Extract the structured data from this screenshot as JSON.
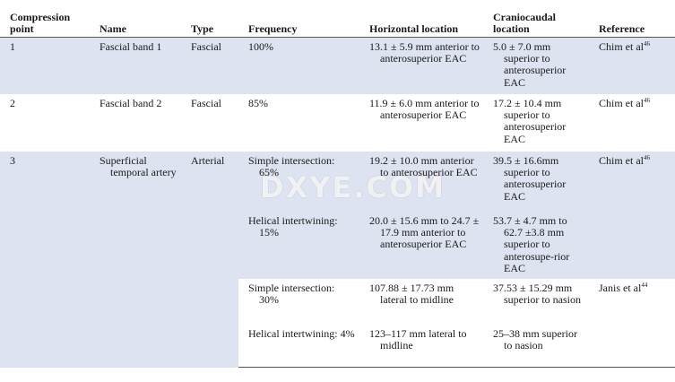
{
  "headers": {
    "point": "Compression point",
    "name": "Name",
    "type": "Type",
    "frequency": "Frequency",
    "horizontal": "Horizontal location",
    "craniocaudal": "Craniocaudal location",
    "reference": "Reference"
  },
  "rows": [
    {
      "point": "1",
      "name": "Fascial band 1",
      "type": "Fascial",
      "frequency": "100%",
      "horizontal": "13.1 ± 5.9 mm anterior to anterosuperior EAC",
      "craniocaudal": "5.0 ± 7.0 mm superior to anterosuperior EAC",
      "ref_author": "Chim et al",
      "ref_num": "46"
    },
    {
      "point": "2",
      "name": "Fascial band 2",
      "type": "Fascial",
      "frequency": "85%",
      "horizontal": "11.9 ± 6.0 mm anterior to anterosuperior EAC",
      "craniocaudal": "17.2 ± 10.4 mm superior to anterosuperior EAC",
      "ref_author": "Chim et al",
      "ref_num": "46"
    }
  ],
  "row3": {
    "point": "3",
    "name": "Superficial temporal artery",
    "type": "Arterial",
    "subrows": [
      {
        "frequency": "Simple intersection: 65%",
        "horizontal": "19.2 ± 10.0 mm anterior to anterosuperior EAC",
        "craniocaudal": "39.5 ± 16.6mm superior to anterosuperior EAC",
        "ref_author": "Chim et al",
        "ref_num": "46"
      },
      {
        "frequency": "Helical intertwining: 15%",
        "horizontal": "20.0 ± 15.6 mm to 24.7 ± 17.9 mm anterior to anterosuperior EAC",
        "craniocaudal": "53.7 ± 4.7 mm to 62.7 ±3.8 mm superior to anterosupe-rior EAC",
        "ref_author": "",
        "ref_num": ""
      },
      {
        "frequency": "Simple intersection: 30%",
        "horizontal": "107.88 ± 17.73 mm lateral to midline",
        "craniocaudal": "37.53 ± 15.29 mm superior to nasion",
        "ref_author": "Janis et al",
        "ref_num": "44"
      },
      {
        "frequency": "Helical intertwining: 4%",
        "horizontal": "123–117 mm lateral to midline",
        "craniocaudal": "25–38 mm superior to nasion",
        "ref_author": "",
        "ref_num": ""
      }
    ]
  },
  "watermark": "DXYE.COM"
}
